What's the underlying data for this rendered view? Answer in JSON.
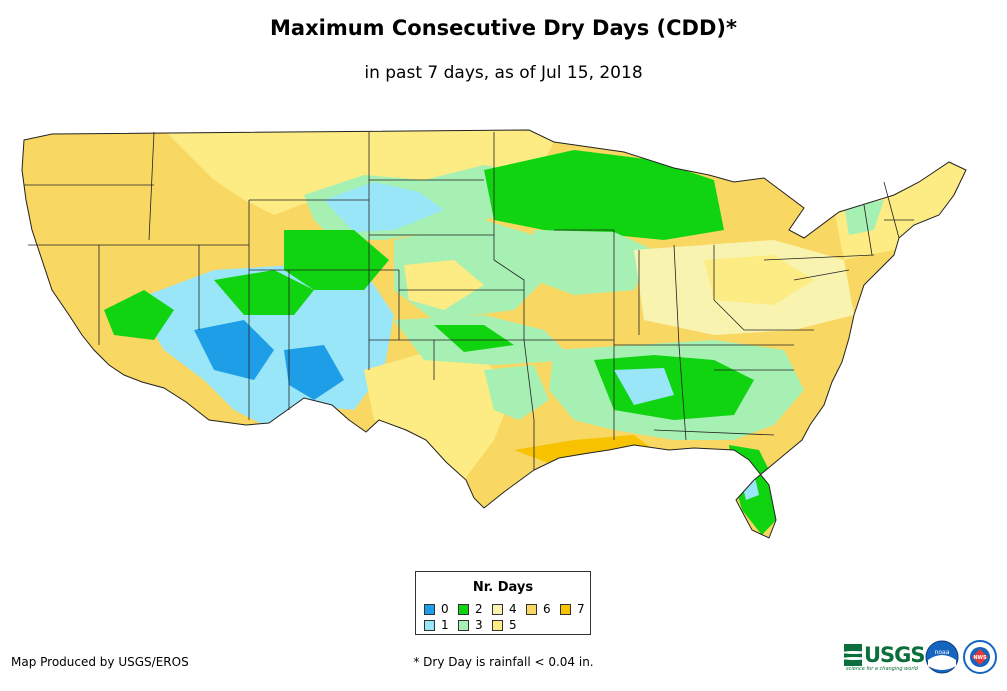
{
  "header": {
    "title": "Maximum Consecutive Dry Days (CDD)*",
    "subtitle": "in past 7 days, as of Jul 15, 2018"
  },
  "legend": {
    "title": "Nr. Days",
    "items": [
      {
        "label": "0",
        "color": "#1f9ee8"
      },
      {
        "label": "1",
        "color": "#98e6f8"
      },
      {
        "label": "2",
        "color": "#10d410"
      },
      {
        "label": "3",
        "color": "#a6f0b4"
      },
      {
        "label": "4",
        "color": "#f8f4b0"
      },
      {
        "label": "5",
        "color": "#fdeb84"
      },
      {
        "label": "6",
        "color": "#f8d762"
      },
      {
        "label": "7",
        "color": "#f7c300"
      }
    ]
  },
  "footer": {
    "credit": "Map Produced by USGS/EROS",
    "footnote": "* Dry Day is rainfall < 0.04 in.",
    "usgs_logo": "USGS",
    "usgs_tagline": "science for a changing world",
    "noaa_logo": "noaa",
    "nws_logo": "NWS"
  }
}
